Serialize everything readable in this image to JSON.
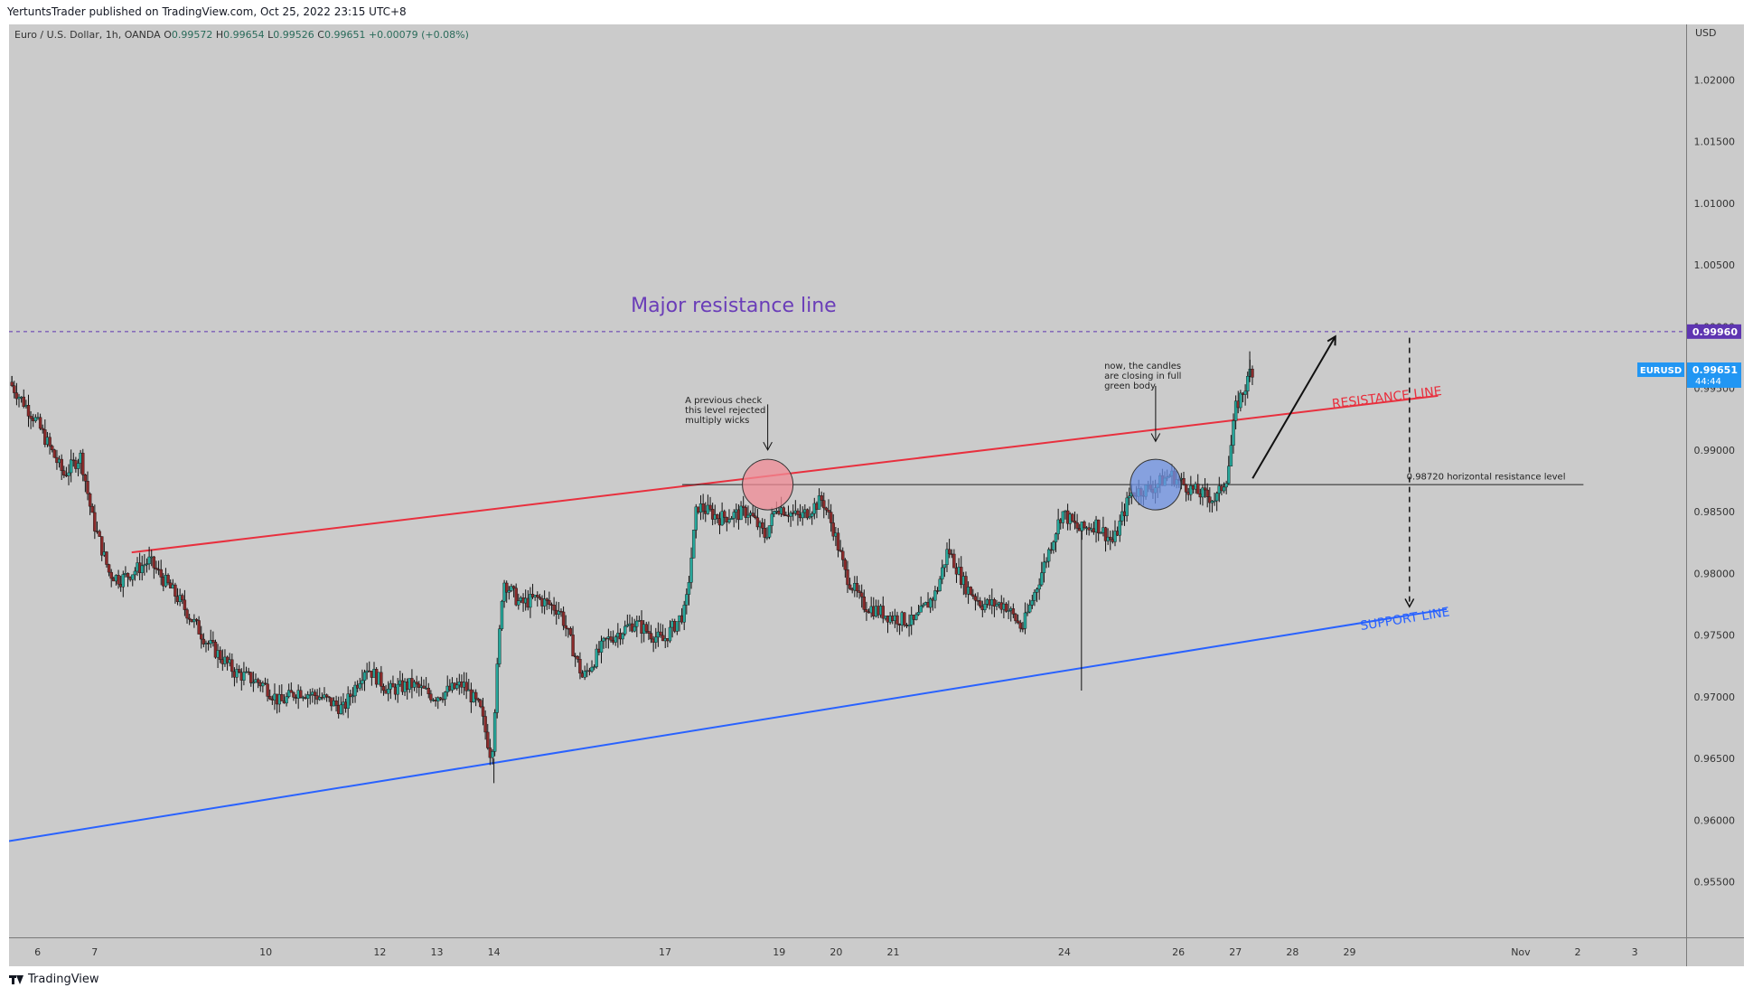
{
  "header": {
    "published_text": "YertuntsTrader published on TradingView.com, Oct 25, 2022 23:15 UTC+8"
  },
  "footer": {
    "brand": "TradingView"
  },
  "legend": {
    "symbol": "Euro / U.S. Dollar, 1h, OANDA",
    "open_label": "O",
    "open": "0.99572",
    "high_label": "H",
    "high": "0.99654",
    "low_label": "L",
    "low": "0.99526",
    "close_label": "C",
    "close": "0.99651",
    "change": "+0.00079 (+0.08%)"
  },
  "colors": {
    "background": "#cbcbcb",
    "resistance": "#e8303e",
    "support": "#2962ff",
    "major_line": "#5e35b1",
    "major_text": "#6a3db8",
    "up_candle": "#26a69a",
    "down_candle": "#8b2b2b",
    "circle_red": "#f28b96",
    "circle_blue": "#6f93e6",
    "price_tag_purple": "#5e35b1",
    "price_tag_blue": "#2196f3"
  },
  "chart_data": {
    "type": "candlestick",
    "currency_label": "USD",
    "ylim": [
      0.9505,
      1.0245
    ],
    "ytick_values": [
      0.955,
      0.96,
      0.965,
      0.97,
      0.975,
      0.98,
      0.985,
      0.99,
      0.995,
      1.0,
      1.005,
      1.01,
      1.015,
      1.02
    ],
    "ytick_labels": [
      "0.95500",
      "0.96000",
      "0.96500",
      "0.97000",
      "0.97500",
      "0.98000",
      "0.98500",
      "0.99000",
      "0.99500",
      "1.00000",
      "1.00500",
      "1.01000",
      "1.01500",
      "1.02000"
    ],
    "xtick_labels": [
      "6",
      "7",
      "10",
      "12",
      "13",
      "14",
      "17",
      "19",
      "20",
      "21",
      "24",
      "26",
      "27",
      "28",
      "29",
      "Nov",
      "2",
      "3"
    ],
    "xtick_days": [
      0,
      1,
      4,
      6,
      7,
      8,
      11,
      13,
      14,
      15,
      18,
      20,
      21,
      22,
      23,
      26,
      27,
      28
    ],
    "xlim_days": [
      -0.5,
      28.9
    ],
    "price_path": [
      [
        -0.45,
        0.9955
      ],
      [
        0.0,
        0.9925
      ],
      [
        0.5,
        0.988
      ],
      [
        0.8,
        0.9895
      ],
      [
        1.0,
        0.9845
      ],
      [
        1.3,
        0.98
      ],
      [
        1.5,
        0.9795
      ],
      [
        2.0,
        0.981
      ],
      [
        2.5,
        0.978
      ],
      [
        3.0,
        0.9745
      ],
      [
        3.5,
        0.972
      ],
      [
        4.0,
        0.971
      ],
      [
        4.3,
        0.9695
      ],
      [
        4.6,
        0.9705
      ],
      [
        5.0,
        0.97
      ],
      [
        5.4,
        0.969
      ],
      [
        5.8,
        0.9725
      ],
      [
        6.2,
        0.9705
      ],
      [
        6.6,
        0.971
      ],
      [
        7.0,
        0.97
      ],
      [
        7.5,
        0.971
      ],
      [
        7.8,
        0.969
      ],
      [
        8.0,
        0.965
      ],
      [
        8.2,
        0.9795
      ],
      [
        8.5,
        0.9775
      ],
      [
        8.8,
        0.978
      ],
      [
        9.2,
        0.977
      ],
      [
        9.6,
        0.9715
      ],
      [
        10.0,
        0.9745
      ],
      [
        10.5,
        0.976
      ],
      [
        11.0,
        0.9745
      ],
      [
        11.4,
        0.977
      ],
      [
        11.6,
        0.9855
      ],
      [
        12.0,
        0.9845
      ],
      [
        12.5,
        0.985
      ],
      [
        12.8,
        0.983
      ],
      [
        13.0,
        0.9855
      ],
      [
        13.4,
        0.9845
      ],
      [
        13.8,
        0.986
      ],
      [
        14.0,
        0.9835
      ],
      [
        14.2,
        0.98
      ],
      [
        14.5,
        0.9775
      ],
      [
        15.0,
        0.9765
      ],
      [
        15.4,
        0.976
      ],
      [
        15.8,
        0.9785
      ],
      [
        16.0,
        0.982
      ],
      [
        16.3,
        0.979
      ],
      [
        16.6,
        0.9775
      ],
      [
        17.0,
        0.9775
      ],
      [
        17.3,
        0.9755
      ],
      [
        17.6,
        0.9795
      ],
      [
        18.0,
        0.985
      ],
      [
        18.3,
        0.9835
      ],
      [
        18.6,
        0.984
      ],
      [
        18.9,
        0.9825
      ],
      [
        19.2,
        0.9865
      ],
      [
        19.6,
        0.987
      ],
      [
        19.9,
        0.988
      ],
      [
        20.2,
        0.987
      ],
      [
        20.4,
        0.9865
      ],
      [
        20.7,
        0.986
      ],
      [
        20.9,
        0.988
      ],
      [
        21.05,
        0.9935
      ],
      [
        21.25,
        0.9955
      ],
      [
        21.3,
        0.9965
      ]
    ],
    "lines": [
      {
        "name": "RESISTANCE LINE",
        "x1": 1.65,
        "y1": 0.9817,
        "x2": 24.55,
        "y2": 0.9944
      },
      {
        "name": "SUPPORT LINE",
        "x1": -0.5,
        "y1": 0.9583,
        "x2": 24.7,
        "y2": 0.9771
      },
      {
        "name": "Major resistance line",
        "x1": -0.5,
        "y1": 0.9996,
        "x2": 28.9,
        "y2": 0.9996
      },
      {
        "name": "0.98720 horizontal resistance level",
        "x1": 11.3,
        "y1": 0.9872,
        "x2": 27.1,
        "y2": 0.9872
      }
    ],
    "annotations": [
      {
        "text": "Major resistance line",
        "x": 10.4,
        "y": 1.0012
      },
      {
        "text": "RESISTANCE LINE",
        "x": 22.7,
        "y": 0.9934
      },
      {
        "text": "SUPPORT LINE",
        "x": 23.2,
        "y": 0.9754
      },
      {
        "text": "0.98720 horizontal resistance level",
        "x": 24.0,
        "y": 0.9876
      },
      {
        "text": "A previous check\nthis level rejected\nmultiply wicks",
        "x": 11.35,
        "y": 0.9938
      },
      {
        "text": "now, the candles\nare closing in full\ngreen body",
        "x": 18.7,
        "y": 0.9966
      }
    ],
    "price_tags": [
      {
        "label": "0.99960",
        "y": 0.9996
      },
      {
        "symbol": "EURUSD",
        "label": "0.99651",
        "countdown": "44:44",
        "y": 0.99651
      }
    ]
  }
}
